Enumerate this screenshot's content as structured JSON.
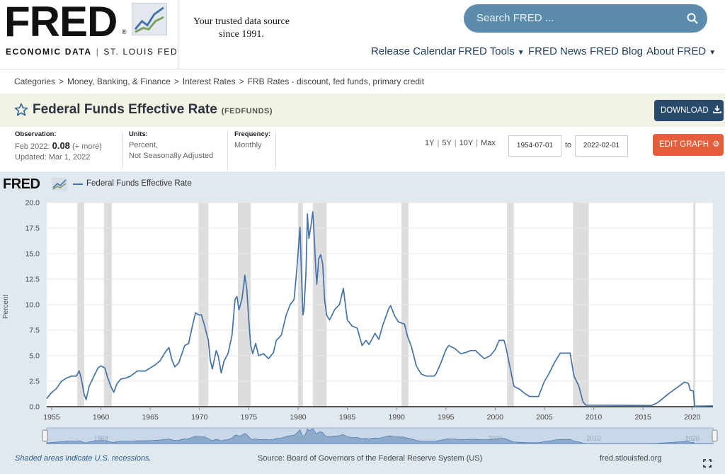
{
  "header": {
    "logo_text": "FRED",
    "logo_sub_left": "ECONOMIC DATA",
    "logo_sub_right": "ST. LOUIS FED",
    "tagline_1": "Your trusted data source",
    "tagline_2": "since 1991.",
    "search_placeholder": "Search FRED ...",
    "nav": [
      {
        "label": "Release Calendar",
        "has_dropdown": false
      },
      {
        "label": "FRED Tools",
        "has_dropdown": true
      },
      {
        "label": "FRED News",
        "has_dropdown": false
      },
      {
        "label": "FRED Blog",
        "has_dropdown": false
      },
      {
        "label": "About FRED",
        "has_dropdown": true
      }
    ]
  },
  "breadcrumbs": [
    "Categories",
    "Money, Banking, & Finance",
    "Interest Rates",
    "FRB Rates - discount, fed funds, primary credit"
  ],
  "series": {
    "title": "Federal Funds Effective Rate",
    "id": "(FEDFUNDS)",
    "download_label": "DOWNLOAD"
  },
  "meta": {
    "observation_label": "Observation:",
    "observation_date": "Feb 2022:",
    "observation_value": "0.08",
    "observation_more": "(+ more)",
    "updated": "Updated: Mar 1, 2022",
    "units_label": "Units:",
    "units_1": "Percent,",
    "units_2": "Not Seasonally Adjusted",
    "frequency_label": "Frequency:",
    "frequency": "Monthly"
  },
  "controls": {
    "ranges": [
      "1Y",
      "5Y",
      "10Y",
      "Max"
    ],
    "start_date": "1954-07-01",
    "to": "to",
    "end_date": "2022-02-01",
    "edit_label": "EDIT GRAPH"
  },
  "graph_header": {
    "logo": "FRED",
    "legend": "Federal Funds Effective Rate"
  },
  "colors": {
    "series": "#4572a7",
    "recession": "#dddddd",
    "download_btn": "#2a4a6b",
    "edit_btn": "#e55e3c",
    "search_bg": "#5c8cab",
    "panel_bg": "#e1e9f0",
    "titlebar_bg": "#f2f3e4"
  },
  "footer": {
    "note": "Shaded areas indicate U.S. recessions.",
    "source": "Source: Board of Governors of the Federal Reserve System (US)",
    "url": "fred.stlouisfed.org"
  },
  "chart_data": {
    "type": "line",
    "ylabel": "Percent",
    "ylim": [
      0,
      20
    ],
    "yticks": [
      "0.0",
      "2.5",
      "5.0",
      "7.5",
      "10.0",
      "12.5",
      "15.0",
      "17.5",
      "20.0"
    ],
    "xlim": [
      1954.5,
      2022.1
    ],
    "xticks": [
      1955,
      1960,
      1965,
      1970,
      1975,
      1980,
      1985,
      1990,
      1995,
      2000,
      2005,
      2010,
      2015,
      2020
    ],
    "navigator_ticks": [
      1960,
      1970,
      1980,
      1990,
      2000,
      2010,
      2020
    ],
    "grid": true,
    "recessions": [
      [
        1957.6,
        1958.3
      ],
      [
        1960.3,
        1961.1
      ],
      [
        1969.9,
        1970.9
      ],
      [
        1973.9,
        1975.2
      ],
      [
        1980.0,
        1980.5
      ],
      [
        1981.5,
        1982.9
      ],
      [
        1990.5,
        1991.2
      ],
      [
        2001.2,
        2001.9
      ],
      [
        2007.9,
        2009.5
      ],
      [
        2020.1,
        2020.3
      ]
    ],
    "series": [
      {
        "name": "Federal Funds Effective Rate",
        "points": [
          [
            1954.5,
            0.8
          ],
          [
            1954.9,
            1.3
          ],
          [
            1955.5,
            1.8
          ],
          [
            1956,
            2.5
          ],
          [
            1956.5,
            2.8
          ],
          [
            1957,
            3.0
          ],
          [
            1957.5,
            3.0
          ],
          [
            1957.8,
            3.5
          ],
          [
            1958,
            2.8
          ],
          [
            1958.3,
            1.2
          ],
          [
            1958.5,
            0.7
          ],
          [
            1958.8,
            2.0
          ],
          [
            1959.3,
            3.0
          ],
          [
            1959.7,
            3.8
          ],
          [
            1960,
            4.0
          ],
          [
            1960.4,
            3.8
          ],
          [
            1960.7,
            2.8
          ],
          [
            1961,
            2.0
          ],
          [
            1961.3,
            1.4
          ],
          [
            1961.6,
            2.2
          ],
          [
            1962,
            2.7
          ],
          [
            1962.5,
            2.8
          ],
          [
            1963,
            3.0
          ],
          [
            1963.7,
            3.5
          ],
          [
            1964.5,
            3.5
          ],
          [
            1965,
            3.8
          ],
          [
            1965.5,
            4.1
          ],
          [
            1966,
            4.5
          ],
          [
            1966.5,
            5.3
          ],
          [
            1966.9,
            5.8
          ],
          [
            1967.2,
            4.6
          ],
          [
            1967.5,
            3.9
          ],
          [
            1967.9,
            4.3
          ],
          [
            1968.5,
            6.0
          ],
          [
            1968.9,
            6.2
          ],
          [
            1969.3,
            8.0
          ],
          [
            1969.6,
            9.2
          ],
          [
            1969.9,
            9.0
          ],
          [
            1970.2,
            9.0
          ],
          [
            1970.5,
            8.0
          ],
          [
            1970.9,
            6.5
          ],
          [
            1971.1,
            4.5
          ],
          [
            1971.3,
            3.7
          ],
          [
            1971.7,
            5.5
          ],
          [
            1971.9,
            5.0
          ],
          [
            1972.2,
            3.3
          ],
          [
            1972.5,
            4.5
          ],
          [
            1972.9,
            5.2
          ],
          [
            1973.3,
            7.0
          ],
          [
            1973.6,
            10.5
          ],
          [
            1973.8,
            10.8
          ],
          [
            1974,
            9.5
          ],
          [
            1974.3,
            10.5
          ],
          [
            1974.5,
            12.0
          ],
          [
            1974.6,
            12.9
          ],
          [
            1974.8,
            11.5
          ],
          [
            1975,
            8.5
          ],
          [
            1975.2,
            6.0
          ],
          [
            1975.4,
            5.2
          ],
          [
            1975.7,
            6.2
          ],
          [
            1976,
            5.0
          ],
          [
            1976.5,
            5.2
          ],
          [
            1976.8,
            4.9
          ],
          [
            1977,
            4.7
          ],
          [
            1977.5,
            5.3
          ],
          [
            1977.8,
            6.5
          ],
          [
            1978.3,
            7.0
          ],
          [
            1978.8,
            9.0
          ],
          [
            1979.2,
            10.0
          ],
          [
            1979.6,
            10.5
          ],
          [
            1979.9,
            13.8
          ],
          [
            1980.2,
            17.6
          ],
          [
            1980.35,
            13.0
          ],
          [
            1980.5,
            9.0
          ],
          [
            1980.6,
            9.5
          ],
          [
            1980.8,
            13.0
          ],
          [
            1980.95,
            18.9
          ],
          [
            1981.1,
            16.5
          ],
          [
            1981.3,
            17.7
          ],
          [
            1981.5,
            19.1
          ],
          [
            1981.6,
            17.5
          ],
          [
            1981.8,
            13.5
          ],
          [
            1981.9,
            12.0
          ],
          [
            1982.1,
            14.5
          ],
          [
            1982.3,
            14.9
          ],
          [
            1982.5,
            14.0
          ],
          [
            1982.7,
            10.5
          ],
          [
            1982.9,
            9.0
          ],
          [
            1983.2,
            8.5
          ],
          [
            1983.7,
            9.5
          ],
          [
            1984.2,
            10.0
          ],
          [
            1984.6,
            11.6
          ],
          [
            1984.8,
            10.0
          ],
          [
            1985,
            8.5
          ],
          [
            1985.5,
            7.9
          ],
          [
            1986,
            7.7
          ],
          [
            1986.5,
            6.0
          ],
          [
            1986.9,
            6.5
          ],
          [
            1987.2,
            6.1
          ],
          [
            1987.6,
            6.8
          ],
          [
            1987.8,
            7.2
          ],
          [
            1988.2,
            6.6
          ],
          [
            1988.6,
            8.0
          ],
          [
            1989.2,
            9.6
          ],
          [
            1989.4,
            9.9
          ],
          [
            1989.8,
            8.9
          ],
          [
            1990.2,
            8.3
          ],
          [
            1990.8,
            8.1
          ],
          [
            1991.1,
            6.9
          ],
          [
            1991.5,
            5.9
          ],
          [
            1992,
            4.0
          ],
          [
            1992.5,
            3.2
          ],
          [
            1993,
            3.0
          ],
          [
            1993.8,
            3.0
          ],
          [
            1994,
            3.2
          ],
          [
            1994.5,
            4.3
          ],
          [
            1995,
            5.6
          ],
          [
            1995.3,
            6.0
          ],
          [
            1995.9,
            5.7
          ],
          [
            1996.5,
            5.2
          ],
          [
            1997,
            5.3
          ],
          [
            1997.5,
            5.5
          ],
          [
            1998,
            5.5
          ],
          [
            1998.9,
            4.7
          ],
          [
            1999.5,
            5.0
          ],
          [
            2000,
            5.6
          ],
          [
            2000.4,
            6.5
          ],
          [
            2000.9,
            6.5
          ],
          [
            2001.1,
            5.8
          ],
          [
            2001.5,
            3.9
          ],
          [
            2001.9,
            2.0
          ],
          [
            2002.5,
            1.7
          ],
          [
            2003,
            1.3
          ],
          [
            2003.5,
            1.0
          ],
          [
            2004.4,
            1.0
          ],
          [
            2005,
            2.5
          ],
          [
            2005.5,
            3.3
          ],
          [
            2006,
            4.3
          ],
          [
            2006.6,
            5.25
          ],
          [
            2007.6,
            5.25
          ],
          [
            2008,
            3.0
          ],
          [
            2008.5,
            2.0
          ],
          [
            2008.9,
            0.5
          ],
          [
            2009.2,
            0.15
          ],
          [
            2015.9,
            0.12
          ],
          [
            2016.5,
            0.4
          ],
          [
            2017.5,
            1.2
          ],
          [
            2018.5,
            1.9
          ],
          [
            2019.2,
            2.4
          ],
          [
            2019.6,
            2.3
          ],
          [
            2019.8,
            1.6
          ],
          [
            2020.1,
            1.55
          ],
          [
            2020.25,
            0.05
          ],
          [
            2022.1,
            0.08
          ]
        ]
      }
    ]
  }
}
